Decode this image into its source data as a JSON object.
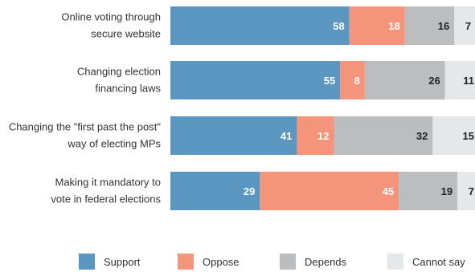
{
  "chart_data": {
    "type": "bar",
    "orientation": "horizontal",
    "stacked": true,
    "categories": [
      [
        "Online voting through",
        "secure website"
      ],
      [
        "Changing election",
        "financing laws"
      ],
      [
        "Changing the \"first past the post\"",
        "way of electing MPs"
      ],
      [
        "Making it mandatory to",
        "vote in federal elections"
      ]
    ],
    "series": [
      {
        "name": "Support",
        "color": "#5b97c1",
        "label_color": "#ffffff",
        "values": [
          58,
          55,
          41,
          29
        ]
      },
      {
        "name": "Oppose",
        "color": "#f4947a",
        "label_color": "#ffffff",
        "values": [
          18,
          8,
          12,
          45
        ]
      },
      {
        "name": "Depends",
        "color": "#bcbdbf",
        "label_color": "#222222",
        "values": [
          16,
          26,
          32,
          19
        ]
      },
      {
        "name": "Cannot say",
        "color": "#e6e7e8",
        "label_color": "#222222",
        "values": [
          7,
          11,
          15,
          7
        ]
      }
    ],
    "xlim": [
      0,
      100
    ],
    "grid": false,
    "legend_position": "bottom"
  }
}
